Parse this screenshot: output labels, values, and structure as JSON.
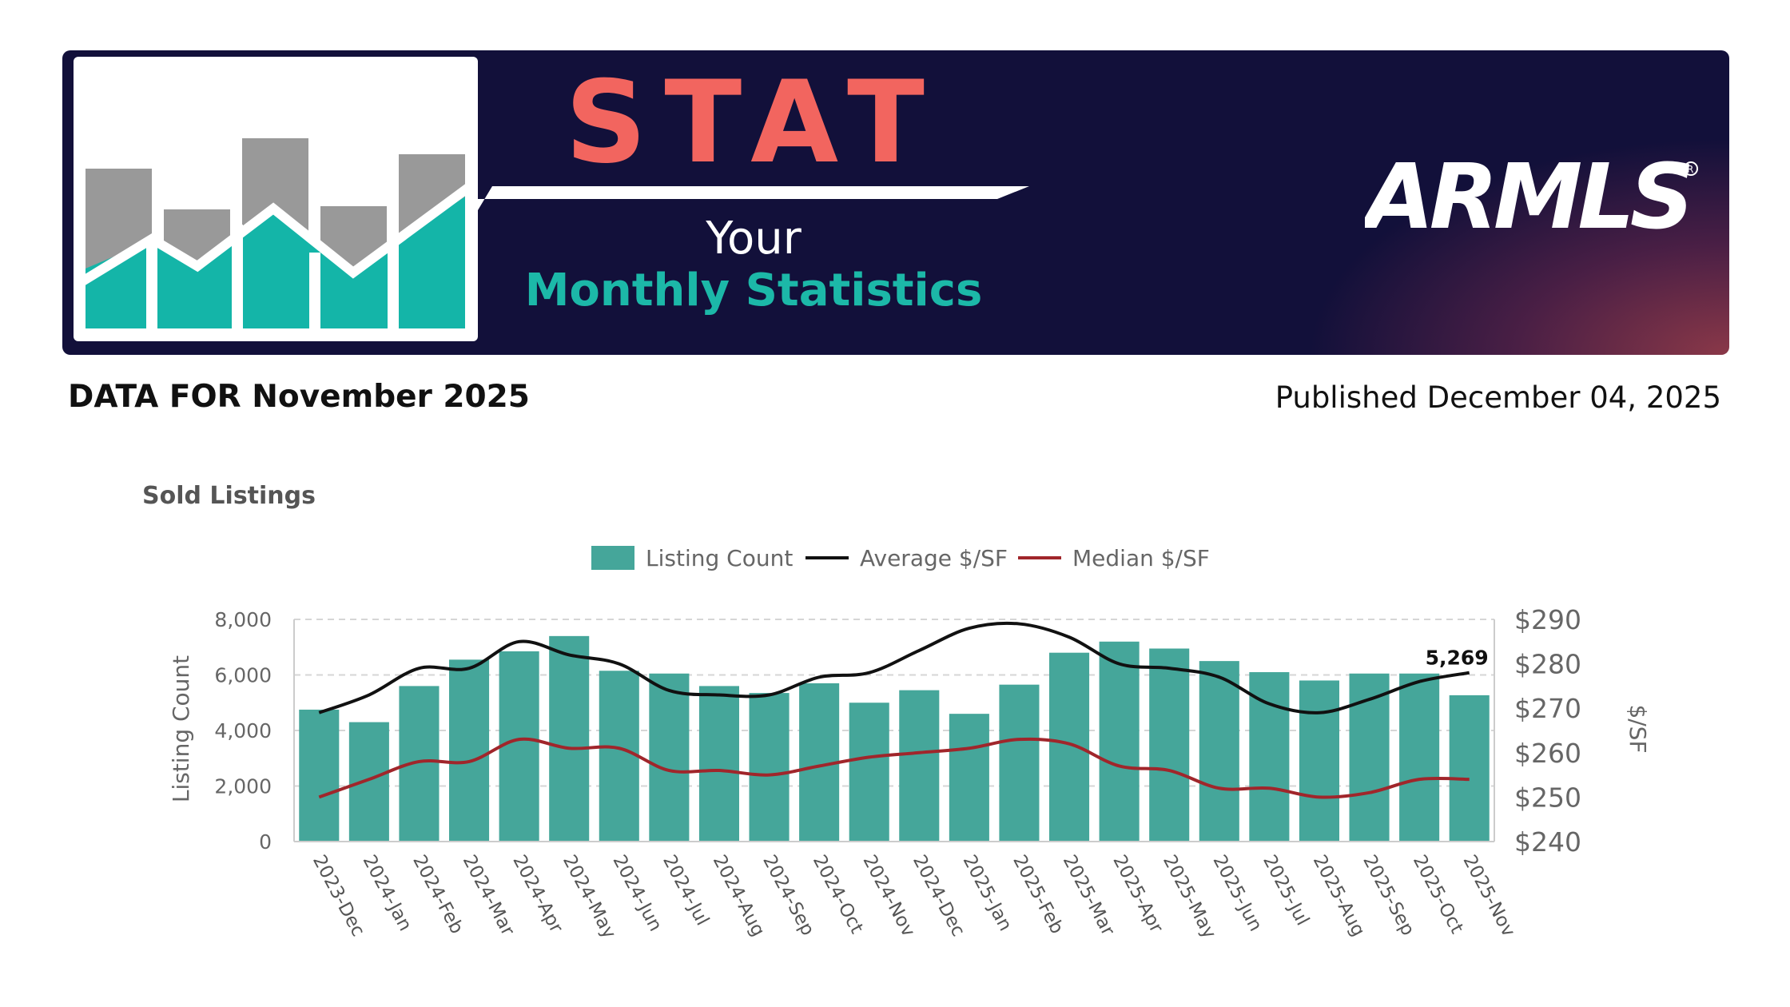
{
  "header": {
    "title": "STAT",
    "subtitle_line1": "Your",
    "subtitle_line2": "Monthly Statistics",
    "brand": "ARMLS",
    "colors": {
      "banner_bg": "#12103a",
      "title": "#f2655f",
      "teal": "#1cb8a8",
      "gray": "#999999"
    }
  },
  "report": {
    "data_for": "DATA FOR November 2025",
    "published": "Published December 04, 2025"
  },
  "chart_data": {
    "type": "bar",
    "title": "Sold Listings",
    "legend_position": "top-center",
    "grid": true,
    "categories": [
      "2023-Dec",
      "2024-Jan",
      "2024-Feb",
      "2024-Mar",
      "2024-Apr",
      "2024-May",
      "2024-Jun",
      "2024-Jul",
      "2024-Aug",
      "2024-Sep",
      "2024-Oct",
      "2024-Nov",
      "2024-Dec",
      "2025-Jan",
      "2025-Feb",
      "2025-Mar",
      "2025-Apr",
      "2025-May",
      "2025-Jun",
      "2025-Jul",
      "2025-Aug",
      "2025-Sep",
      "2025-Oct",
      "2025-Nov"
    ],
    "series": [
      {
        "name": "Listing Count",
        "type": "bar",
        "axis": "left",
        "color": "#45a69a",
        "values": [
          4750,
          4300,
          5600,
          6550,
          6850,
          7400,
          6150,
          6050,
          5600,
          5350,
          5700,
          5000,
          5450,
          4600,
          5650,
          6800,
          7200,
          6950,
          6500,
          6100,
          5800,
          6050,
          6050,
          5269
        ]
      },
      {
        "name": "Average $/SF",
        "type": "line",
        "axis": "right",
        "color": "#111111",
        "values": [
          269,
          273,
          279,
          279,
          285,
          282,
          280,
          274,
          273,
          273,
          277,
          278,
          283,
          288,
          289,
          286,
          280,
          279,
          277,
          271,
          269,
          272,
          276,
          278
        ]
      },
      {
        "name": "Median $/SF",
        "type": "line",
        "axis": "right",
        "color": "#a0262b",
        "values": [
          250,
          254,
          258,
          258,
          263,
          261,
          261,
          256,
          256,
          255,
          257,
          259,
          260,
          261,
          263,
          262,
          257,
          256,
          252,
          252,
          250,
          251,
          254,
          254
        ]
      }
    ],
    "y_left": {
      "label": "Listing Count",
      "min": 0,
      "max": 8000,
      "ticks": [
        "0",
        "2,000",
        "4,000",
        "6,000",
        "8,000"
      ]
    },
    "y_right": {
      "label": "$/SF",
      "min": 240,
      "max": 290,
      "ticks": [
        "$240",
        "$250",
        "$260",
        "$270",
        "$280",
        "$290"
      ]
    },
    "data_labels": [
      {
        "index": 23,
        "text": "5,269"
      }
    ]
  }
}
